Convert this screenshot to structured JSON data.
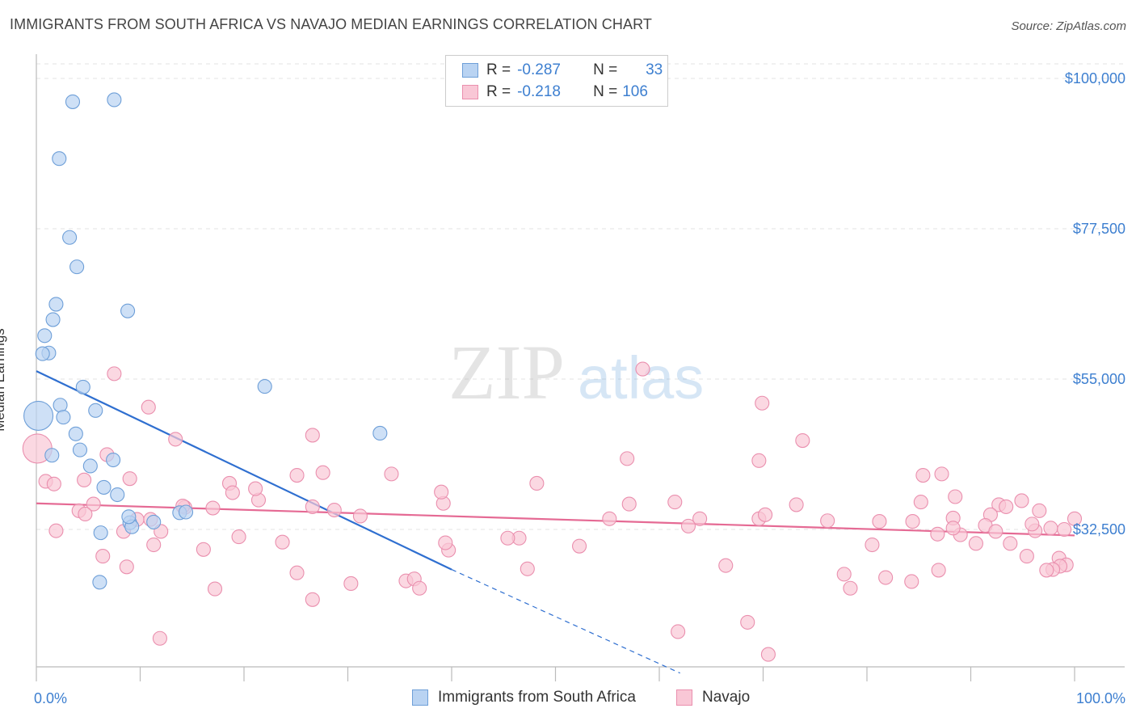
{
  "title": "IMMIGRANTS FROM SOUTH AFRICA VS NAVAJO MEDIAN EARNINGS CORRELATION CHART",
  "source": "Source: ZipAtlas.com",
  "watermark": {
    "zip": "ZIP",
    "atlas": "atlas"
  },
  "colors": {
    "blue_fill": "#b9d3f2",
    "blue_stroke": "#6e9fd8",
    "blue_line": "#2f6fd0",
    "pink_fill": "#f9c7d6",
    "pink_stroke": "#ea8fae",
    "pink_line": "#e56a94",
    "accent_text": "#3d7fd0"
  },
  "legend": {
    "rows": [
      {
        "r_label": "R =",
        "r_value": "-0.287",
        "n_label": "N =",
        "n_value": "33"
      },
      {
        "r_label": "R =",
        "r_value": "-0.218",
        "n_label": "N =",
        "n_value": "106"
      }
    ]
  },
  "chart_data": {
    "type": "scatter",
    "title": "IMMIGRANTS FROM SOUTH AFRICA VS NAVAJO MEDIAN EARNINGS CORRELATION CHART",
    "xlabel": "",
    "ylabel": "Median Earnings",
    "x_tick_labels": [
      "0.0%",
      "100.0%"
    ],
    "y_tick_labels": [
      "$32,500",
      "$55,000",
      "$77,500",
      "$100,000"
    ],
    "y_ticks": [
      32500,
      55000,
      77500,
      100000
    ],
    "xlim": [
      0,
      100
    ],
    "ylim": [
      12000,
      104000
    ],
    "series": [
      {
        "name": "Immigrants from South Africa",
        "color_key": "blue",
        "r": -0.287,
        "n": 33,
        "trend": {
          "x0": 0,
          "y0": 56200,
          "x1": 40,
          "y1": 26500,
          "dash_to_x": 62,
          "dash_to_y": 11000
        },
        "points": [
          {
            "x": 0.2,
            "y": 49500,
            "big": true
          },
          {
            "x": 3.5,
            "y": 96500
          },
          {
            "x": 7.5,
            "y": 96800
          },
          {
            "x": 2.2,
            "y": 88000
          },
          {
            "x": 3.2,
            "y": 76200
          },
          {
            "x": 3.9,
            "y": 71800
          },
          {
            "x": 1.9,
            "y": 66200
          },
          {
            "x": 8.8,
            "y": 65200
          },
          {
            "x": 1.6,
            "y": 63900
          },
          {
            "x": 0.8,
            "y": 61500
          },
          {
            "x": 1.2,
            "y": 58900
          },
          {
            "x": 0.6,
            "y": 58800
          },
          {
            "x": 4.5,
            "y": 53800
          },
          {
            "x": 22,
            "y": 53900
          },
          {
            "x": 2.3,
            "y": 51100
          },
          {
            "x": 5.7,
            "y": 50300
          },
          {
            "x": 2.6,
            "y": 49300
          },
          {
            "x": 3.8,
            "y": 46800
          },
          {
            "x": 4.2,
            "y": 44400
          },
          {
            "x": 1.5,
            "y": 43600
          },
          {
            "x": 7.4,
            "y": 42900
          },
          {
            "x": 5.2,
            "y": 42000
          },
          {
            "x": 33.1,
            "y": 46900
          },
          {
            "x": 6.5,
            "y": 38800
          },
          {
            "x": 7.8,
            "y": 37700
          },
          {
            "x": 13.8,
            "y": 35000
          },
          {
            "x": 14.4,
            "y": 35100
          },
          {
            "x": 11.3,
            "y": 33600
          },
          {
            "x": 9,
            "y": 33500
          },
          {
            "x": 9.2,
            "y": 32900
          },
          {
            "x": 6.2,
            "y": 32000
          },
          {
            "x": 6.1,
            "y": 24600
          },
          {
            "x": 8.9,
            "y": 34400
          }
        ]
      },
      {
        "name": "Navajo",
        "color_key": "pink",
        "r": -0.218,
        "n": 106,
        "trend": {
          "x0": 0,
          "y0": 36400,
          "x1": 100,
          "y1": 31600
        },
        "points": [
          {
            "x": 0.1,
            "y": 44600,
            "big": true
          },
          {
            "x": 7.5,
            "y": 55800
          },
          {
            "x": 58.4,
            "y": 56500
          },
          {
            "x": 10.8,
            "y": 50800
          },
          {
            "x": 69.9,
            "y": 51400
          },
          {
            "x": 13.4,
            "y": 46000
          },
          {
            "x": 26.6,
            "y": 46600
          },
          {
            "x": 73.8,
            "y": 45800
          },
          {
            "x": 6.8,
            "y": 43700
          },
          {
            "x": 56.9,
            "y": 43100
          },
          {
            "x": 69.6,
            "y": 42800
          },
          {
            "x": 96.6,
            "y": 35300
          },
          {
            "x": 87.2,
            "y": 40800
          },
          {
            "x": 9,
            "y": 40100
          },
          {
            "x": 14.3,
            "y": 35800
          },
          {
            "x": 18.6,
            "y": 39400
          },
          {
            "x": 27.6,
            "y": 41000
          },
          {
            "x": 34.2,
            "y": 40800
          },
          {
            "x": 85.4,
            "y": 40600
          },
          {
            "x": 88.5,
            "y": 37400
          },
          {
            "x": 88.3,
            "y": 34200
          },
          {
            "x": 89,
            "y": 31700
          },
          {
            "x": 96.2,
            "y": 32300
          },
          {
            "x": 98.5,
            "y": 28200
          },
          {
            "x": 25.1,
            "y": 40600
          },
          {
            "x": 4.6,
            "y": 39900
          },
          {
            "x": 0.9,
            "y": 39700
          },
          {
            "x": 1.7,
            "y": 39300
          },
          {
            "x": 5.5,
            "y": 36300
          },
          {
            "x": 4.1,
            "y": 35300
          },
          {
            "x": 1.9,
            "y": 32300
          },
          {
            "x": 18.9,
            "y": 38000
          },
          {
            "x": 21.4,
            "y": 36900
          },
          {
            "x": 28.7,
            "y": 35400
          },
          {
            "x": 26.6,
            "y": 35900
          },
          {
            "x": 39.2,
            "y": 36400
          },
          {
            "x": 31.2,
            "y": 34500
          },
          {
            "x": 39,
            "y": 38100
          },
          {
            "x": 48.2,
            "y": 39400
          },
          {
            "x": 57.1,
            "y": 36300
          },
          {
            "x": 61.5,
            "y": 36600
          },
          {
            "x": 63.9,
            "y": 34100
          },
          {
            "x": 69.6,
            "y": 34100
          },
          {
            "x": 76.2,
            "y": 33800
          },
          {
            "x": 81.2,
            "y": 33700
          },
          {
            "x": 85.2,
            "y": 36600
          },
          {
            "x": 92.7,
            "y": 36200
          },
          {
            "x": 94.9,
            "y": 36800
          },
          {
            "x": 93.4,
            "y": 35900
          },
          {
            "x": 91.9,
            "y": 34700
          },
          {
            "x": 91.4,
            "y": 33100
          },
          {
            "x": 92.4,
            "y": 32200
          },
          {
            "x": 95.9,
            "y": 33300
          },
          {
            "x": 100,
            "y": 34100
          },
          {
            "x": 97.7,
            "y": 32700
          },
          {
            "x": 99,
            "y": 32500
          },
          {
            "x": 99.2,
            "y": 27200
          },
          {
            "x": 98.6,
            "y": 27000
          },
          {
            "x": 97.9,
            "y": 26500
          },
          {
            "x": 97.3,
            "y": 26400
          },
          {
            "x": 95.4,
            "y": 28500
          },
          {
            "x": 90.5,
            "y": 30400
          },
          {
            "x": 84.4,
            "y": 33700
          },
          {
            "x": 86.8,
            "y": 31800
          },
          {
            "x": 93.8,
            "y": 30400
          },
          {
            "x": 80.5,
            "y": 30200
          },
          {
            "x": 88.3,
            "y": 32700
          },
          {
            "x": 73.2,
            "y": 36200
          },
          {
            "x": 70.2,
            "y": 34700
          },
          {
            "x": 62.8,
            "y": 33000
          },
          {
            "x": 55.2,
            "y": 34100
          },
          {
            "x": 46.5,
            "y": 31200
          },
          {
            "x": 39.7,
            "y": 29400
          },
          {
            "x": 47.3,
            "y": 26600
          },
          {
            "x": 4.7,
            "y": 34800
          },
          {
            "x": 8.4,
            "y": 32200
          },
          {
            "x": 9.7,
            "y": 34000
          },
          {
            "x": 12,
            "y": 32200
          },
          {
            "x": 14.1,
            "y": 36000
          },
          {
            "x": 17,
            "y": 35700
          },
          {
            "x": 21.1,
            "y": 38600
          },
          {
            "x": 16.1,
            "y": 29500
          },
          {
            "x": 11.3,
            "y": 30200
          },
          {
            "x": 11,
            "y": 34000
          },
          {
            "x": 6.4,
            "y": 28500
          },
          {
            "x": 8.7,
            "y": 26900
          },
          {
            "x": 19.5,
            "y": 31400
          },
          {
            "x": 23.7,
            "y": 30600
          },
          {
            "x": 25.1,
            "y": 26000
          },
          {
            "x": 35.6,
            "y": 24800
          },
          {
            "x": 36.4,
            "y": 25100
          },
          {
            "x": 39.4,
            "y": 30500
          },
          {
            "x": 45.4,
            "y": 31200
          },
          {
            "x": 30.3,
            "y": 24400
          },
          {
            "x": 17.2,
            "y": 23600
          },
          {
            "x": 26.6,
            "y": 22000
          },
          {
            "x": 36.9,
            "y": 23700
          },
          {
            "x": 52.3,
            "y": 30000
          },
          {
            "x": 66.4,
            "y": 27100
          },
          {
            "x": 77.8,
            "y": 25800
          },
          {
            "x": 81.8,
            "y": 25300
          },
          {
            "x": 84.3,
            "y": 24700
          },
          {
            "x": 78.4,
            "y": 23700
          },
          {
            "x": 86.9,
            "y": 26400
          },
          {
            "x": 61.8,
            "y": 17200
          },
          {
            "x": 68.5,
            "y": 18600
          },
          {
            "x": 70.5,
            "y": 13800
          },
          {
            "x": 11.9,
            "y": 16200
          }
        ]
      }
    ]
  },
  "bottom_legend": {
    "items": [
      "Immigrants from South Africa",
      "Navajo"
    ]
  }
}
